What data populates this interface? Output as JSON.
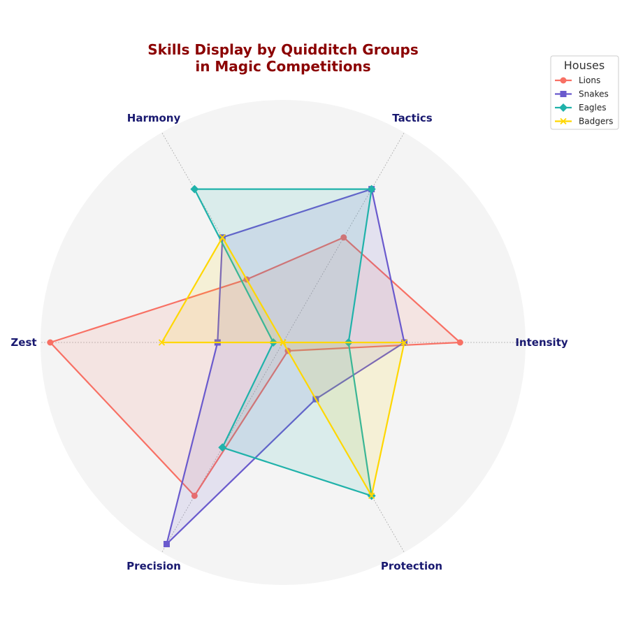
{
  "chart_data": {
    "type": "radar",
    "title": [
      "Skills Display by Quidditch Groups",
      "in Magic Competitions"
    ],
    "axes": [
      "Intensity",
      "Tactics",
      "Harmony",
      "Zest",
      "Precision",
      "Protection"
    ],
    "rlim": [
      0,
      100
    ],
    "legend": {
      "title": "Houses",
      "position": "top-right"
    },
    "colors": {
      "title": "#8b0000",
      "axis_label": "#191970",
      "background": "#f4f4f4"
    },
    "series": [
      {
        "name": "Lions",
        "color": "#f87064",
        "marker": "circle",
        "values": [
          73,
          50,
          30,
          96,
          73,
          4
        ]
      },
      {
        "name": "Snakes",
        "color": "#6a5acd",
        "marker": "square",
        "values": [
          50,
          73,
          50,
          27,
          96,
          27
        ]
      },
      {
        "name": "Eagles",
        "color": "#20b2aa",
        "marker": "diamond",
        "values": [
          27,
          73,
          73,
          4,
          50,
          73
        ]
      },
      {
        "name": "Badgers",
        "color": "#ffd700",
        "marker": "x",
        "values": [
          50,
          0,
          50,
          50,
          0,
          73
        ]
      }
    ]
  }
}
